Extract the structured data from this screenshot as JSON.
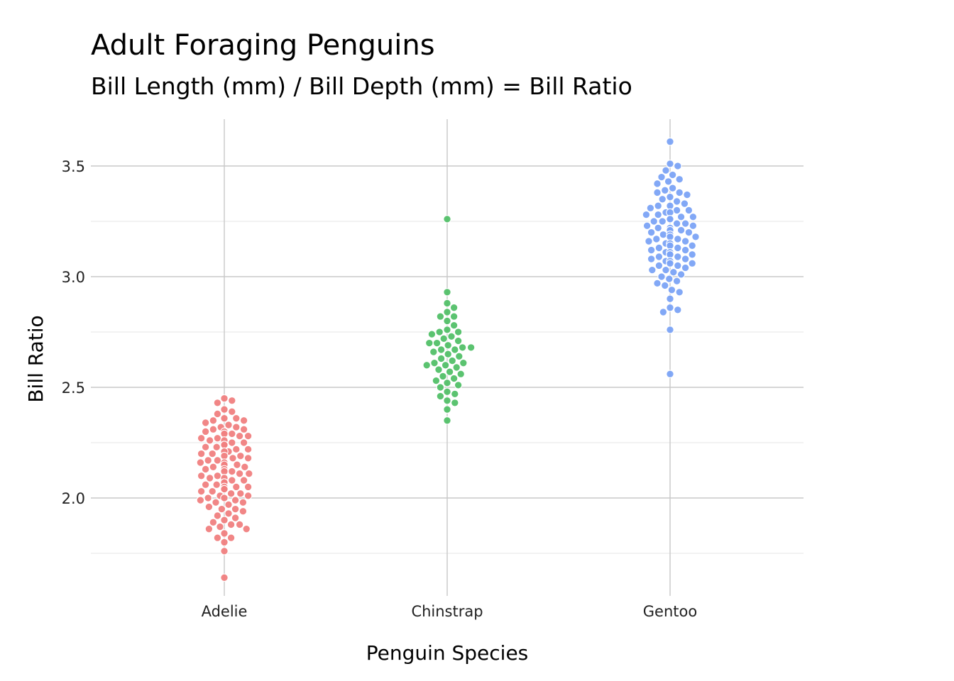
{
  "chart_data": {
    "type": "scatter",
    "title": "Adult Foraging Penguins",
    "subtitle": "Bill Length (mm) / Bill Depth (mm) = Bill Ratio",
    "xlabel": "Penguin Species",
    "ylabel": "Bill Ratio",
    "categories": [
      "Adelie",
      "Chinstrap",
      "Gentoo"
    ],
    "ylim": [
      1.55,
      3.7
    ],
    "yticks": [
      2.0,
      2.5,
      3.0,
      3.5
    ],
    "grid": true,
    "legend": "none",
    "series": [
      {
        "category": "Adelie",
        "color": "#f08080",
        "values": [
          1.64,
          1.76,
          1.8,
          1.82,
          1.82,
          1.84,
          1.86,
          1.86,
          1.87,
          1.88,
          1.88,
          1.89,
          1.9,
          1.91,
          1.92,
          1.93,
          1.94,
          1.95,
          1.95,
          1.96,
          1.97,
          1.98,
          1.98,
          1.99,
          1.99,
          2.0,
          2.0,
          2.01,
          2.01,
          2.02,
          2.02,
          2.03,
          2.03,
          2.04,
          2.04,
          2.05,
          2.05,
          2.05,
          2.06,
          2.06,
          2.07,
          2.07,
          2.08,
          2.08,
          2.09,
          2.09,
          2.1,
          2.1,
          2.11,
          2.11,
          2.12,
          2.12,
          2.13,
          2.13,
          2.14,
          2.14,
          2.15,
          2.15,
          2.16,
          2.16,
          2.17,
          2.17,
          2.18,
          2.18,
          2.19,
          2.19,
          2.2,
          2.2,
          2.21,
          2.21,
          2.22,
          2.22,
          2.23,
          2.23,
          2.24,
          2.24,
          2.24,
          2.25,
          2.25,
          2.26,
          2.26,
          2.27,
          2.27,
          2.28,
          2.28,
          2.29,
          2.29,
          2.3,
          2.3,
          2.31,
          2.31,
          2.32,
          2.32,
          2.33,
          2.34,
          2.35,
          2.35,
          2.36,
          2.36,
          2.38,
          2.39,
          2.4,
          2.43,
          2.44,
          2.45
        ]
      },
      {
        "category": "Chinstrap",
        "color": "#52c068",
        "values": [
          2.35,
          2.4,
          2.43,
          2.44,
          2.46,
          2.47,
          2.48,
          2.5,
          2.51,
          2.52,
          2.53,
          2.54,
          2.55,
          2.56,
          2.57,
          2.58,
          2.59,
          2.6,
          2.6,
          2.61,
          2.61,
          2.62,
          2.63,
          2.64,
          2.65,
          2.66,
          2.67,
          2.67,
          2.68,
          2.68,
          2.69,
          2.7,
          2.7,
          2.71,
          2.72,
          2.73,
          2.74,
          2.75,
          2.75,
          2.76,
          2.78,
          2.8,
          2.82,
          2.82,
          2.84,
          2.86,
          2.88,
          2.93,
          3.26
        ]
      },
      {
        "category": "Gentoo",
        "color": "#7ba3f5",
        "values": [
          2.56,
          2.76,
          2.84,
          2.85,
          2.86,
          2.9,
          2.93,
          2.94,
          2.96,
          2.97,
          2.98,
          2.99,
          3.0,
          3.01,
          3.02,
          3.03,
          3.03,
          3.04,
          3.05,
          3.05,
          3.06,
          3.06,
          3.07,
          3.07,
          3.08,
          3.08,
          3.09,
          3.09,
          3.1,
          3.1,
          3.1,
          3.11,
          3.11,
          3.12,
          3.12,
          3.13,
          3.13,
          3.14,
          3.14,
          3.15,
          3.15,
          3.16,
          3.16,
          3.17,
          3.17,
          3.18,
          3.18,
          3.19,
          3.19,
          3.2,
          3.2,
          3.21,
          3.21,
          3.22,
          3.22,
          3.23,
          3.23,
          3.24,
          3.24,
          3.25,
          3.25,
          3.26,
          3.26,
          3.27,
          3.27,
          3.28,
          3.28,
          3.29,
          3.29,
          3.3,
          3.3,
          3.31,
          3.32,
          3.32,
          3.33,
          3.34,
          3.35,
          3.36,
          3.37,
          3.38,
          3.38,
          3.39,
          3.4,
          3.42,
          3.43,
          3.44,
          3.45,
          3.46,
          3.48,
          3.5,
          3.51,
          3.61
        ]
      }
    ]
  }
}
